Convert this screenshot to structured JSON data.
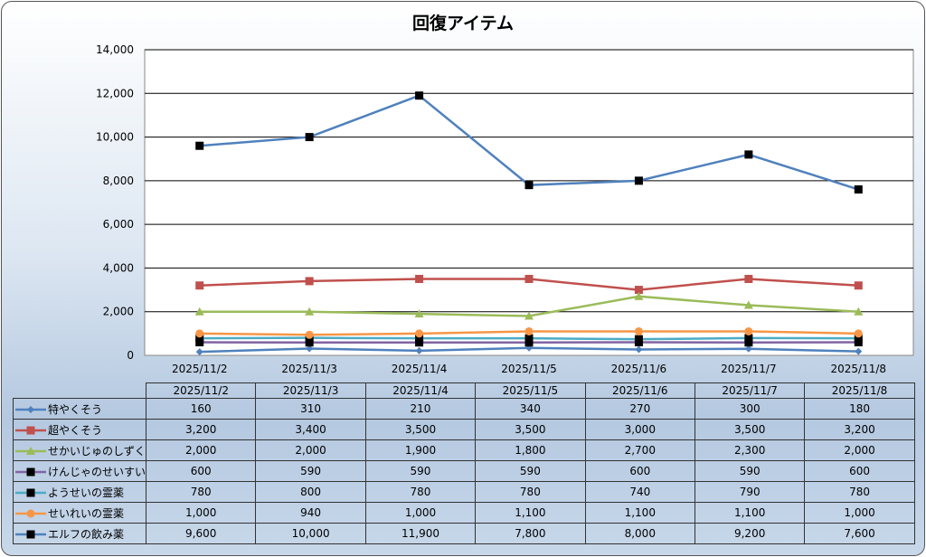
{
  "chart_data": {
    "type": "line",
    "title": "回復アイテム",
    "xlabel": "",
    "ylabel": "",
    "ylim": [
      0,
      14000
    ],
    "yticks": [
      "0",
      "2,000",
      "4,000",
      "6,000",
      "8,000",
      "10,000",
      "12,000",
      "14,000"
    ],
    "grid": true,
    "legend": "data-table",
    "categories": [
      "2025/11/2",
      "2025/11/3",
      "2025/11/4",
      "2025/11/5",
      "2025/11/6",
      "2025/11/7",
      "2025/11/8"
    ],
    "series": [
      {
        "name": "特やくそう",
        "color": "#4f81bd",
        "marker": "diamond",
        "markerColor": "#4f81bd",
        "values": [
          160,
          310,
          210,
          340,
          270,
          300,
          180
        ],
        "labels": [
          "160",
          "310",
          "210",
          "340",
          "270",
          "300",
          "180"
        ]
      },
      {
        "name": "超やくそう",
        "color": "#c0504d",
        "marker": "square",
        "markerColor": "#c0504d",
        "values": [
          3200,
          3400,
          3500,
          3500,
          3000,
          3500,
          3200
        ],
        "labels": [
          "3,200",
          "3,400",
          "3,500",
          "3,500",
          "3,000",
          "3,500",
          "3,200"
        ]
      },
      {
        "name": "せかいじゅのしずく",
        "color": "#9bbb59",
        "marker": "triangle",
        "markerColor": "#9bbb59",
        "values": [
          2000,
          2000,
          1900,
          1800,
          2700,
          2300,
          2000
        ],
        "labels": [
          "2,000",
          "2,000",
          "1,900",
          "1,800",
          "2,700",
          "2,300",
          "2,000"
        ]
      },
      {
        "name": "けんじゃのせいすい",
        "color": "#8064a2",
        "marker": "square",
        "markerColor": "#000000",
        "values": [
          600,
          590,
          590,
          590,
          600,
          590,
          600
        ],
        "labels": [
          "600",
          "590",
          "590",
          "590",
          "600",
          "590",
          "600"
        ]
      },
      {
        "name": "ようせいの霊薬",
        "color": "#4bacc6",
        "marker": "square",
        "markerColor": "#000000",
        "values": [
          780,
          800,
          780,
          780,
          740,
          790,
          780
        ],
        "labels": [
          "780",
          "800",
          "780",
          "780",
          "740",
          "790",
          "780"
        ]
      },
      {
        "name": "せいれいの霊薬",
        "color": "#f79646",
        "marker": "circle",
        "markerColor": "#f79646",
        "values": [
          1000,
          940,
          1000,
          1100,
          1100,
          1100,
          1000
        ],
        "labels": [
          "1,000",
          "940",
          "1,000",
          "1,100",
          "1,100",
          "1,100",
          "1,000"
        ]
      },
      {
        "name": "エルフの飲み薬",
        "color": "#4f81bd",
        "marker": "square",
        "markerColor": "#000000",
        "values": [
          9600,
          10000,
          11900,
          7800,
          8000,
          9200,
          7600
        ],
        "labels": [
          "9,600",
          "10,000",
          "11,900",
          "7,800",
          "8,000",
          "9,200",
          "7,600"
        ]
      }
    ]
  }
}
